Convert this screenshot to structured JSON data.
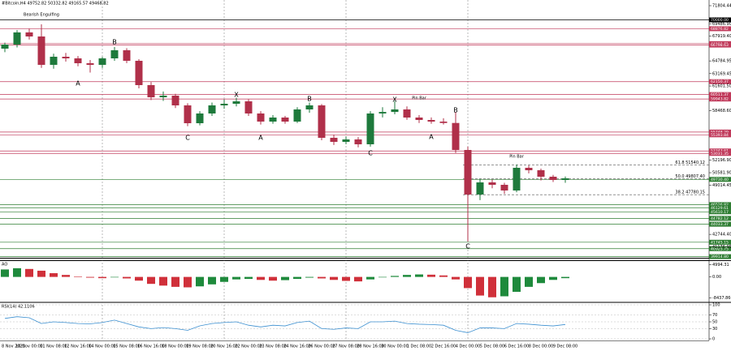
{
  "header": "#Bitcoin,H4  49752.82 50332.82 49165.57 49468.82",
  "chart_data": [
    {
      "type": "candlestick",
      "categories": [
        "8 Nov 2021",
        null,
        "10 Nov 00:00",
        null,
        "11 Nov 08:00",
        null,
        "12 Nov 16:00",
        null,
        "14 Nov 00:00",
        null,
        "15 Nov 08:00",
        null,
        "16 Nov 16:00",
        null,
        "18 Nov 00:00",
        null,
        "19 Nov 08:00",
        null,
        "20 Nov 16:00",
        null,
        "22 Nov 00:00",
        null,
        "23 Nov 08:00",
        null,
        "24 Nov 16:00",
        null,
        "26 Nov 00:00",
        null,
        "27 Nov 08:00",
        null,
        "28 Nov 16:00",
        null,
        "30 Nov 00:00",
        null,
        "1 Dec 08:00",
        null,
        "2 Dec 16:00",
        null,
        "4 Dec 00:00",
        null,
        "5 Dec 08:00",
        null,
        "6 Dec 16:00",
        null,
        "8 Dec 00:00",
        null,
        "9 Dec 08:00"
      ],
      "open": [
        66345,
        66860,
        68405,
        67890,
        64285,
        65315,
        65109,
        64491,
        64285,
        65109,
        66139,
        64800,
        61710,
        60165,
        60371,
        59135,
        56869,
        58105,
        59135,
        59341,
        59650,
        58105,
        57075,
        57590,
        57075,
        58620,
        59135,
        55015,
        54500,
        54809,
        54191,
        58105,
        58300,
        58620,
        57590,
        57281,
        57075,
        56900,
        53470,
        47805,
        49350,
        49041,
        48320,
        51204,
        50895,
        50071,
        49659
      ],
      "high": [
        67100,
        68700,
        68900,
        69435,
        65700,
        65800,
        65400,
        64900,
        65300,
        66551,
        66400,
        65000,
        62100,
        60900,
        60600,
        59400,
        58400,
        59500,
        59900,
        60100,
        59900,
        58400,
        57900,
        57800,
        58900,
        59500,
        59300,
        55400,
        55200,
        55100,
        58400,
        58900,
        59700,
        59000,
        57900,
        57600,
        57500,
        58311,
        53900,
        49800,
        49700,
        49300,
        51616,
        51500,
        51100,
        50300,
        50100
      ],
      "low": [
        65900,
        66500,
        67500,
        63900,
        63800,
        64700,
        64100,
        63300,
        63900,
        64800,
        64500,
        61300,
        59800,
        59700,
        58800,
        56500,
        56600,
        57800,
        58700,
        59000,
        57800,
        56700,
        56800,
        56800,
        56900,
        58200,
        54700,
        54100,
        54200,
        53800,
        53900,
        57600,
        58000,
        57300,
        56900,
        56800,
        56700,
        53100,
        41831,
        47100,
        48600,
        47900,
        48100,
        50500,
        49600,
        49400,
        49300
      ],
      "close": [
        66860,
        68405,
        67890,
        64285,
        65315,
        65109,
        64491,
        64285,
        65109,
        66139,
        64800,
        61710,
        60165,
        60371,
        59135,
        56869,
        58105,
        59135,
        59341,
        59650,
        58105,
        57075,
        57590,
        57075,
        58620,
        59135,
        55015,
        54500,
        54809,
        54191,
        58105,
        58300,
        58620,
        57590,
        57281,
        57075,
        56900,
        53470,
        47805,
        49350,
        49041,
        48320,
        51204,
        50895,
        50071,
        49659,
        49865
      ],
      "up_color": "#1e7a3c",
      "down_color": "#b0304a",
      "ylim": [
        39770,
        72525
      ],
      "yticks": [
        {
          "value": 71804.44,
          "label": "71804.44"
        },
        {
          "value": 69486.9,
          "label": "69486.90"
        },
        {
          "value": 67919.4,
          "label": "67919.40"
        },
        {
          "value": 64784.95,
          "label": "64784.95"
        },
        {
          "value": 63169.45,
          "label": "63169.45"
        },
        {
          "value": 61601.5,
          "label": "61601.50"
        },
        {
          "value": 58468.6,
          "label": "58468.60"
        },
        {
          "value": 52196.9,
          "label": "52196.90"
        },
        {
          "value": 50581.9,
          "label": "50581.90"
        },
        {
          "value": 49014.45,
          "label": "49014.45"
        },
        {
          "value": 42744.4,
          "label": "42744.40"
        },
        {
          "value": 41176.95,
          "label": "41176.95"
        }
      ],
      "levels": [
        {
          "value": 70000,
          "label": "70000.00",
          "color": "#000000"
        },
        {
          "value": 68876.82,
          "label": "68876.82",
          "color": "#c0395a"
        },
        {
          "value": 66983.71,
          "label": "66983.71",
          "color": "#c0395a"
        },
        {
          "value": 66798.63,
          "label": "66798.63",
          "color": "#c0395a"
        },
        {
          "value": 62150.37,
          "label": "62150.37",
          "color": "#c0395a"
        },
        {
          "value": 60511.37,
          "label": "60511.37",
          "color": "#c0395a"
        },
        {
          "value": 59943.82,
          "label": "59943.82",
          "color": "#c0395a"
        },
        {
          "value": 55748.29,
          "label": "55748.29",
          "color": "#c0395a"
        },
        {
          "value": 55393.84,
          "label": "55393.84",
          "color": "#c0395a"
        },
        {
          "value": 53343.61,
          "label": "53343.61",
          "color": "#c0395a"
        },
        {
          "value": 53031.35,
          "label": "53031.35",
          "color": "#c0395a"
        },
        {
          "value": 49730.4,
          "label": "49730.40",
          "color": "#2e7d32"
        },
        {
          "value": 46526.82,
          "label": "46526.82",
          "color": "#2e7d32"
        },
        {
          "value": 46129.61,
          "label": "46129.61",
          "color": "#2e7d32"
        },
        {
          "value": 45610.17,
          "label": "45610.17",
          "color": "#2e7d32"
        },
        {
          "value": 44782.12,
          "label": "44782.12",
          "color": "#2e7d32"
        },
        {
          "value": 44033.37,
          "label": "44033.37",
          "color": "#2e7d32"
        },
        {
          "value": 41745.15,
          "label": "41745.15",
          "color": "#2e7d32"
        },
        {
          "value": 40925.75,
          "label": "40925.75",
          "color": "#2e7d32"
        },
        {
          "value": 39914.8,
          "label": "39914.80",
          "color": "#2e7d32"
        }
      ],
      "fib_levels": [
        {
          "value": 51540.12,
          "label": "61.8 51540.12"
        },
        {
          "value": 49807.4,
          "label": "50.0 49807.40"
        },
        {
          "value": 47780.15,
          "label": "38.2 47780.15"
        }
      ],
      "annotations": [
        {
          "text": "Bearish Engulfing",
          "x": 3,
          "y": 70670,
          "color": "#000000"
        },
        {
          "text": "A",
          "x": 6,
          "y": 61915,
          "color": "#000000"
        },
        {
          "text": "B",
          "x": 9,
          "y": 67170,
          "color": "#000000"
        },
        {
          "text": "C",
          "x": 15,
          "y": 55015,
          "color": "#000000"
        },
        {
          "text": "X",
          "x": 19,
          "y": 60475,
          "color": "#c0395a"
        },
        {
          "text": "A",
          "x": 21,
          "y": 55015,
          "color": "#000000"
        },
        {
          "text": "B",
          "x": 25,
          "y": 59960,
          "color": "#000000"
        },
        {
          "text": "C",
          "x": 30,
          "y": 53060,
          "color": "#000000"
        },
        {
          "text": "X",
          "x": 32,
          "y": 59855,
          "color": "#c0395a"
        },
        {
          "text": "Pin Bar",
          "x": 34,
          "y": 60060,
          "color": "#000000"
        },
        {
          "text": "A",
          "x": 35,
          "y": 55120,
          "color": "#000000"
        },
        {
          "text": "B",
          "x": 37,
          "y": 58520,
          "color": "#000000"
        },
        {
          "text": "C",
          "x": 38,
          "y": 41210,
          "color": "#000000"
        },
        {
          "text": "Pin Bar",
          "x": 42,
          "y": 52650,
          "color": "#000000"
        }
      ]
    },
    {
      "type": "histogram",
      "title": "AO",
      "values": [
        3000,
        3500,
        3200,
        2500,
        1500,
        800,
        200,
        -300,
        -500,
        -200,
        -600,
        -1500,
        -2800,
        -3500,
        -4000,
        -4200,
        -3800,
        -3000,
        -2000,
        -1000,
        -800,
        -1200,
        -1500,
        -1300,
        -800,
        -300,
        -600,
        -1200,
        -1600,
        -1800,
        -1000,
        -200,
        400,
        800,
        1000,
        900,
        600,
        -1000,
        -4500,
        -7500,
        -8200,
        -7800,
        -6000,
        -4000,
        -2500,
        -1200,
        -500
      ],
      "up_color": "#1e8a3c",
      "down_color": "#d0303a",
      "ylim": [
        -9920,
        6400
      ],
      "yticks": [
        {
          "value": 4994.31,
          "label": "4994.31"
        },
        {
          "value": 0,
          "label": "0.00"
        },
        {
          "value": -8437.866,
          "label": "-8437.866"
        }
      ]
    },
    {
      "type": "line",
      "title": "RSI(14) 42.1106",
      "values": [
        60,
        65,
        62,
        45,
        50,
        48,
        45,
        44,
        48,
        55,
        45,
        35,
        30,
        33,
        30,
        25,
        38,
        45,
        48,
        50,
        40,
        35,
        40,
        38,
        48,
        52,
        30,
        28,
        32,
        30,
        50,
        50,
        52,
        45,
        43,
        42,
        40,
        25,
        18,
        32,
        32,
        30,
        45,
        43,
        40,
        38,
        42.1106
      ],
      "color": "#3b8fd0",
      "ylim": [
        0,
        100
      ],
      "yticks": [
        100,
        70,
        50,
        30,
        0
      ]
    }
  ]
}
